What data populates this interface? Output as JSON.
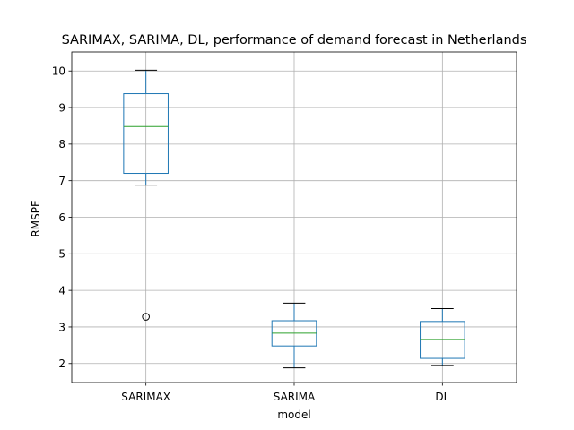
{
  "chart_data": {
    "type": "box",
    "title": "SARIMAX, SARIMA, DL, performance of demand forecast in Netherlands",
    "xlabel": "model",
    "ylabel": "RMSPE",
    "categories": [
      "SARIMAX",
      "SARIMA",
      "DL"
    ],
    "ylim": [
      1.48,
      10.52
    ],
    "yticks": [
      "2",
      "3",
      "4",
      "5",
      "6",
      "7",
      "8",
      "9",
      "10"
    ],
    "grid": true,
    "boxes": [
      {
        "category": "SARIMAX",
        "whisker_low": 6.88,
        "q1": 7.2,
        "median": 8.48,
        "q3": 9.38,
        "whisker_high": 10.02,
        "outliers": [
          3.28
        ]
      },
      {
        "category": "SARIMA",
        "whisker_low": 1.88,
        "q1": 2.48,
        "median": 2.83,
        "q3": 3.17,
        "whisker_high": 3.65,
        "outliers": []
      },
      {
        "category": "DL",
        "whisker_low": 1.95,
        "q1": 2.14,
        "median": 2.66,
        "q3": 3.15,
        "whisker_high": 3.5,
        "outliers": []
      }
    ],
    "colors": {
      "box": "#1f77b4",
      "median": "#2ca02c",
      "whisker_cap": "#000000",
      "grid": "#b0b0b0",
      "flier": "#000000"
    }
  }
}
